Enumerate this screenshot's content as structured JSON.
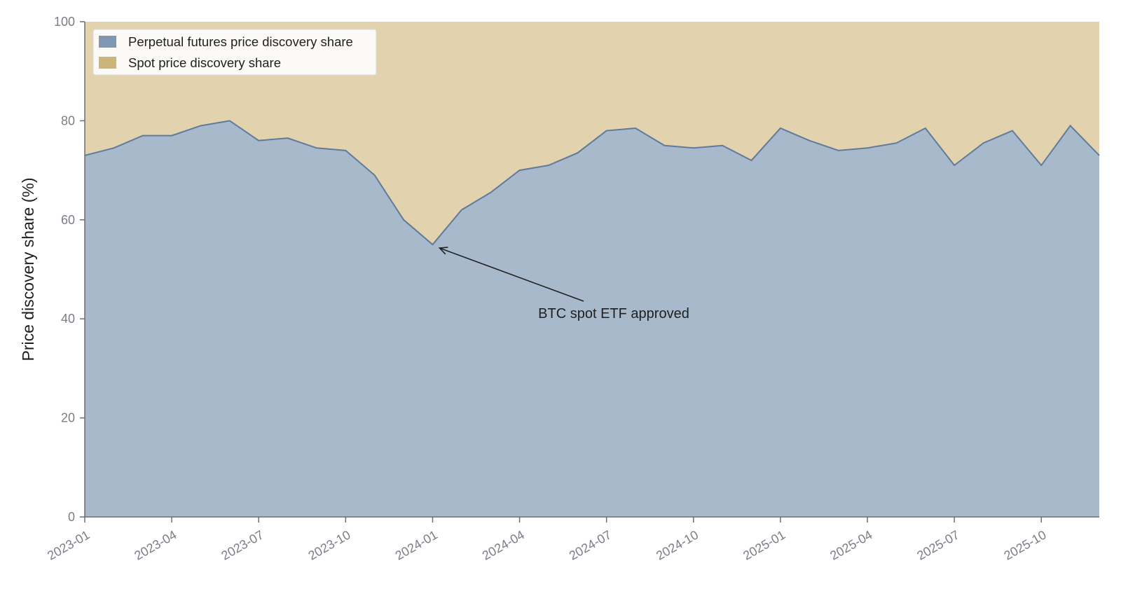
{
  "chart_data": {
    "type": "area",
    "stacked": true,
    "x": [
      "2023-01",
      "2023-02",
      "2023-03",
      "2023-04",
      "2023-05",
      "2023-06",
      "2023-07",
      "2023-08",
      "2023-09",
      "2023-10",
      "2023-11",
      "2023-12",
      "2024-01",
      "2024-02",
      "2024-03",
      "2024-04",
      "2024-05",
      "2024-06",
      "2024-07",
      "2024-08",
      "2024-09",
      "2024-10",
      "2024-11",
      "2024-12",
      "2025-01",
      "2025-02",
      "2025-03",
      "2025-04",
      "2025-05",
      "2025-06",
      "2025-07",
      "2025-08",
      "2025-09",
      "2025-10",
      "2025-11",
      "2025-12"
    ],
    "series": [
      {
        "name": "Perpetual futures price discovery share",
        "color": "#7f97b2",
        "fill_color": "#a9b9cc",
        "line_color": "#5f7a9b",
        "values": [
          73.0,
          74.5,
          77.0,
          77.0,
          79.0,
          80.0,
          76.0,
          76.5,
          74.5,
          74.0,
          69.0,
          60.0,
          55.0,
          62.0,
          65.5,
          70.0,
          71.0,
          73.5,
          78.0,
          78.5,
          75.0,
          74.5,
          75.0,
          72.0,
          78.5,
          76.0,
          74.0,
          74.5,
          75.5,
          78.5,
          71.0,
          75.5,
          78.0,
          71.0,
          79.0,
          73.0
        ]
      },
      {
        "name": "Spot price discovery share",
        "color": "#cdb57a",
        "fill_color": "#e2d3ae",
        "values": [
          27.0,
          25.5,
          23.0,
          23.0,
          21.0,
          20.0,
          24.0,
          23.5,
          25.5,
          26.0,
          31.0,
          40.0,
          45.0,
          38.0,
          34.5,
          30.0,
          29.0,
          26.5,
          22.0,
          21.5,
          25.0,
          25.5,
          25.0,
          28.0,
          21.5,
          24.0,
          26.0,
          25.5,
          24.5,
          21.5,
          29.0,
          24.5,
          22.0,
          29.0,
          21.0,
          27.0
        ]
      }
    ],
    "x_ticks": [
      "2023-01",
      "2023-04",
      "2023-07",
      "2023-10",
      "2024-01",
      "2024-04",
      "2024-07",
      "2024-10",
      "2025-01",
      "2025-04",
      "2025-07",
      "2025-10"
    ],
    "y_ticks": [
      0,
      20,
      40,
      60,
      80,
      100
    ],
    "ylim": [
      0,
      100
    ],
    "xlabel": "",
    "ylabel": "Price discovery share (%)",
    "grid": false,
    "legend": {
      "position": "top-left"
    },
    "annotations": [
      {
        "text": "BTC spot ETF approved",
        "x": "2024-01",
        "y": 55.0
      }
    ]
  }
}
